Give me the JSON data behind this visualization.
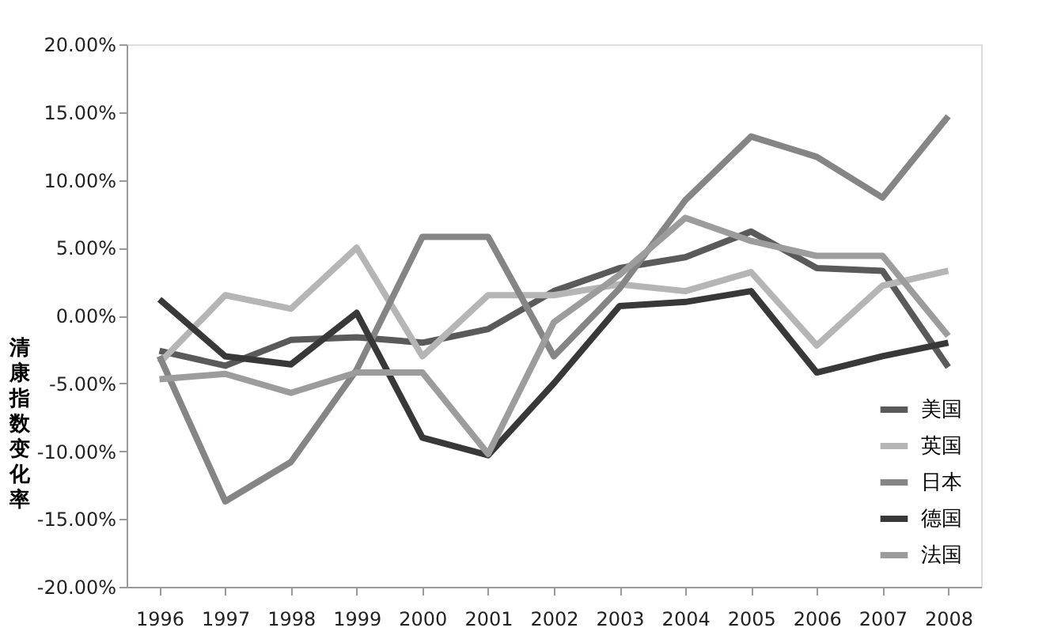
{
  "chart_data": {
    "type": "line",
    "ylabel": "清康指数变化率",
    "categories": [
      "1996",
      "1997",
      "1998",
      "1999",
      "2000",
      "2001",
      "2002",
      "2003",
      "2004",
      "2005",
      "2006",
      "2007",
      "2008"
    ],
    "series": [
      {
        "name": "美国",
        "color": "#5a5a5a",
        "values": [
          -2.6,
          -3.7,
          -1.8,
          -1.6,
          -2.0,
          -1.0,
          1.8,
          3.5,
          4.3,
          6.2,
          3.5,
          3.3,
          -3.8
        ]
      },
      {
        "name": "英国",
        "color": "#b5b5b5",
        "values": [
          -3.5,
          1.5,
          0.5,
          5.0,
          -3.0,
          1.5,
          1.5,
          2.3,
          1.8,
          3.2,
          -2.2,
          2.2,
          3.3
        ]
      },
      {
        "name": "日本",
        "color": "#858585",
        "values": [
          -3.0,
          -13.7,
          -10.8,
          -4.0,
          5.8,
          5.8,
          -3.0,
          2.0,
          8.5,
          13.2,
          11.7,
          8.7,
          14.7
        ]
      },
      {
        "name": "德国",
        "color": "#383838",
        "values": [
          1.2,
          -3.0,
          -3.6,
          0.2,
          -9.0,
          -10.3,
          -5.0,
          0.7,
          1.0,
          1.8,
          -4.2,
          -3.0,
          -2.0
        ]
      },
      {
        "name": "法国",
        "color": "#9c9c9c",
        "values": [
          -4.7,
          -4.3,
          -5.7,
          -4.2,
          -4.2,
          -10.2,
          -0.5,
          3.0,
          7.2,
          5.5,
          4.4,
          4.4,
          -1.5
        ]
      }
    ],
    "ylim": [
      -20,
      20
    ],
    "yticks": [
      {
        "value": -20,
        "label": "-20.00%"
      },
      {
        "value": -15,
        "label": "-15.00%"
      },
      {
        "value": -10,
        "label": "-10.00%"
      },
      {
        "value": -5,
        "label": "-5.00%"
      },
      {
        "value": 0,
        "label": "0.00%"
      },
      {
        "value": 5,
        "label": "5.00%"
      },
      {
        "value": 10,
        "label": "10.00%"
      },
      {
        "value": 15,
        "label": "15.00%"
      },
      {
        "value": 20,
        "label": "20.00%"
      }
    ],
    "grid": false,
    "legend": "bottom right",
    "marker": "none",
    "line_style": "solid"
  }
}
